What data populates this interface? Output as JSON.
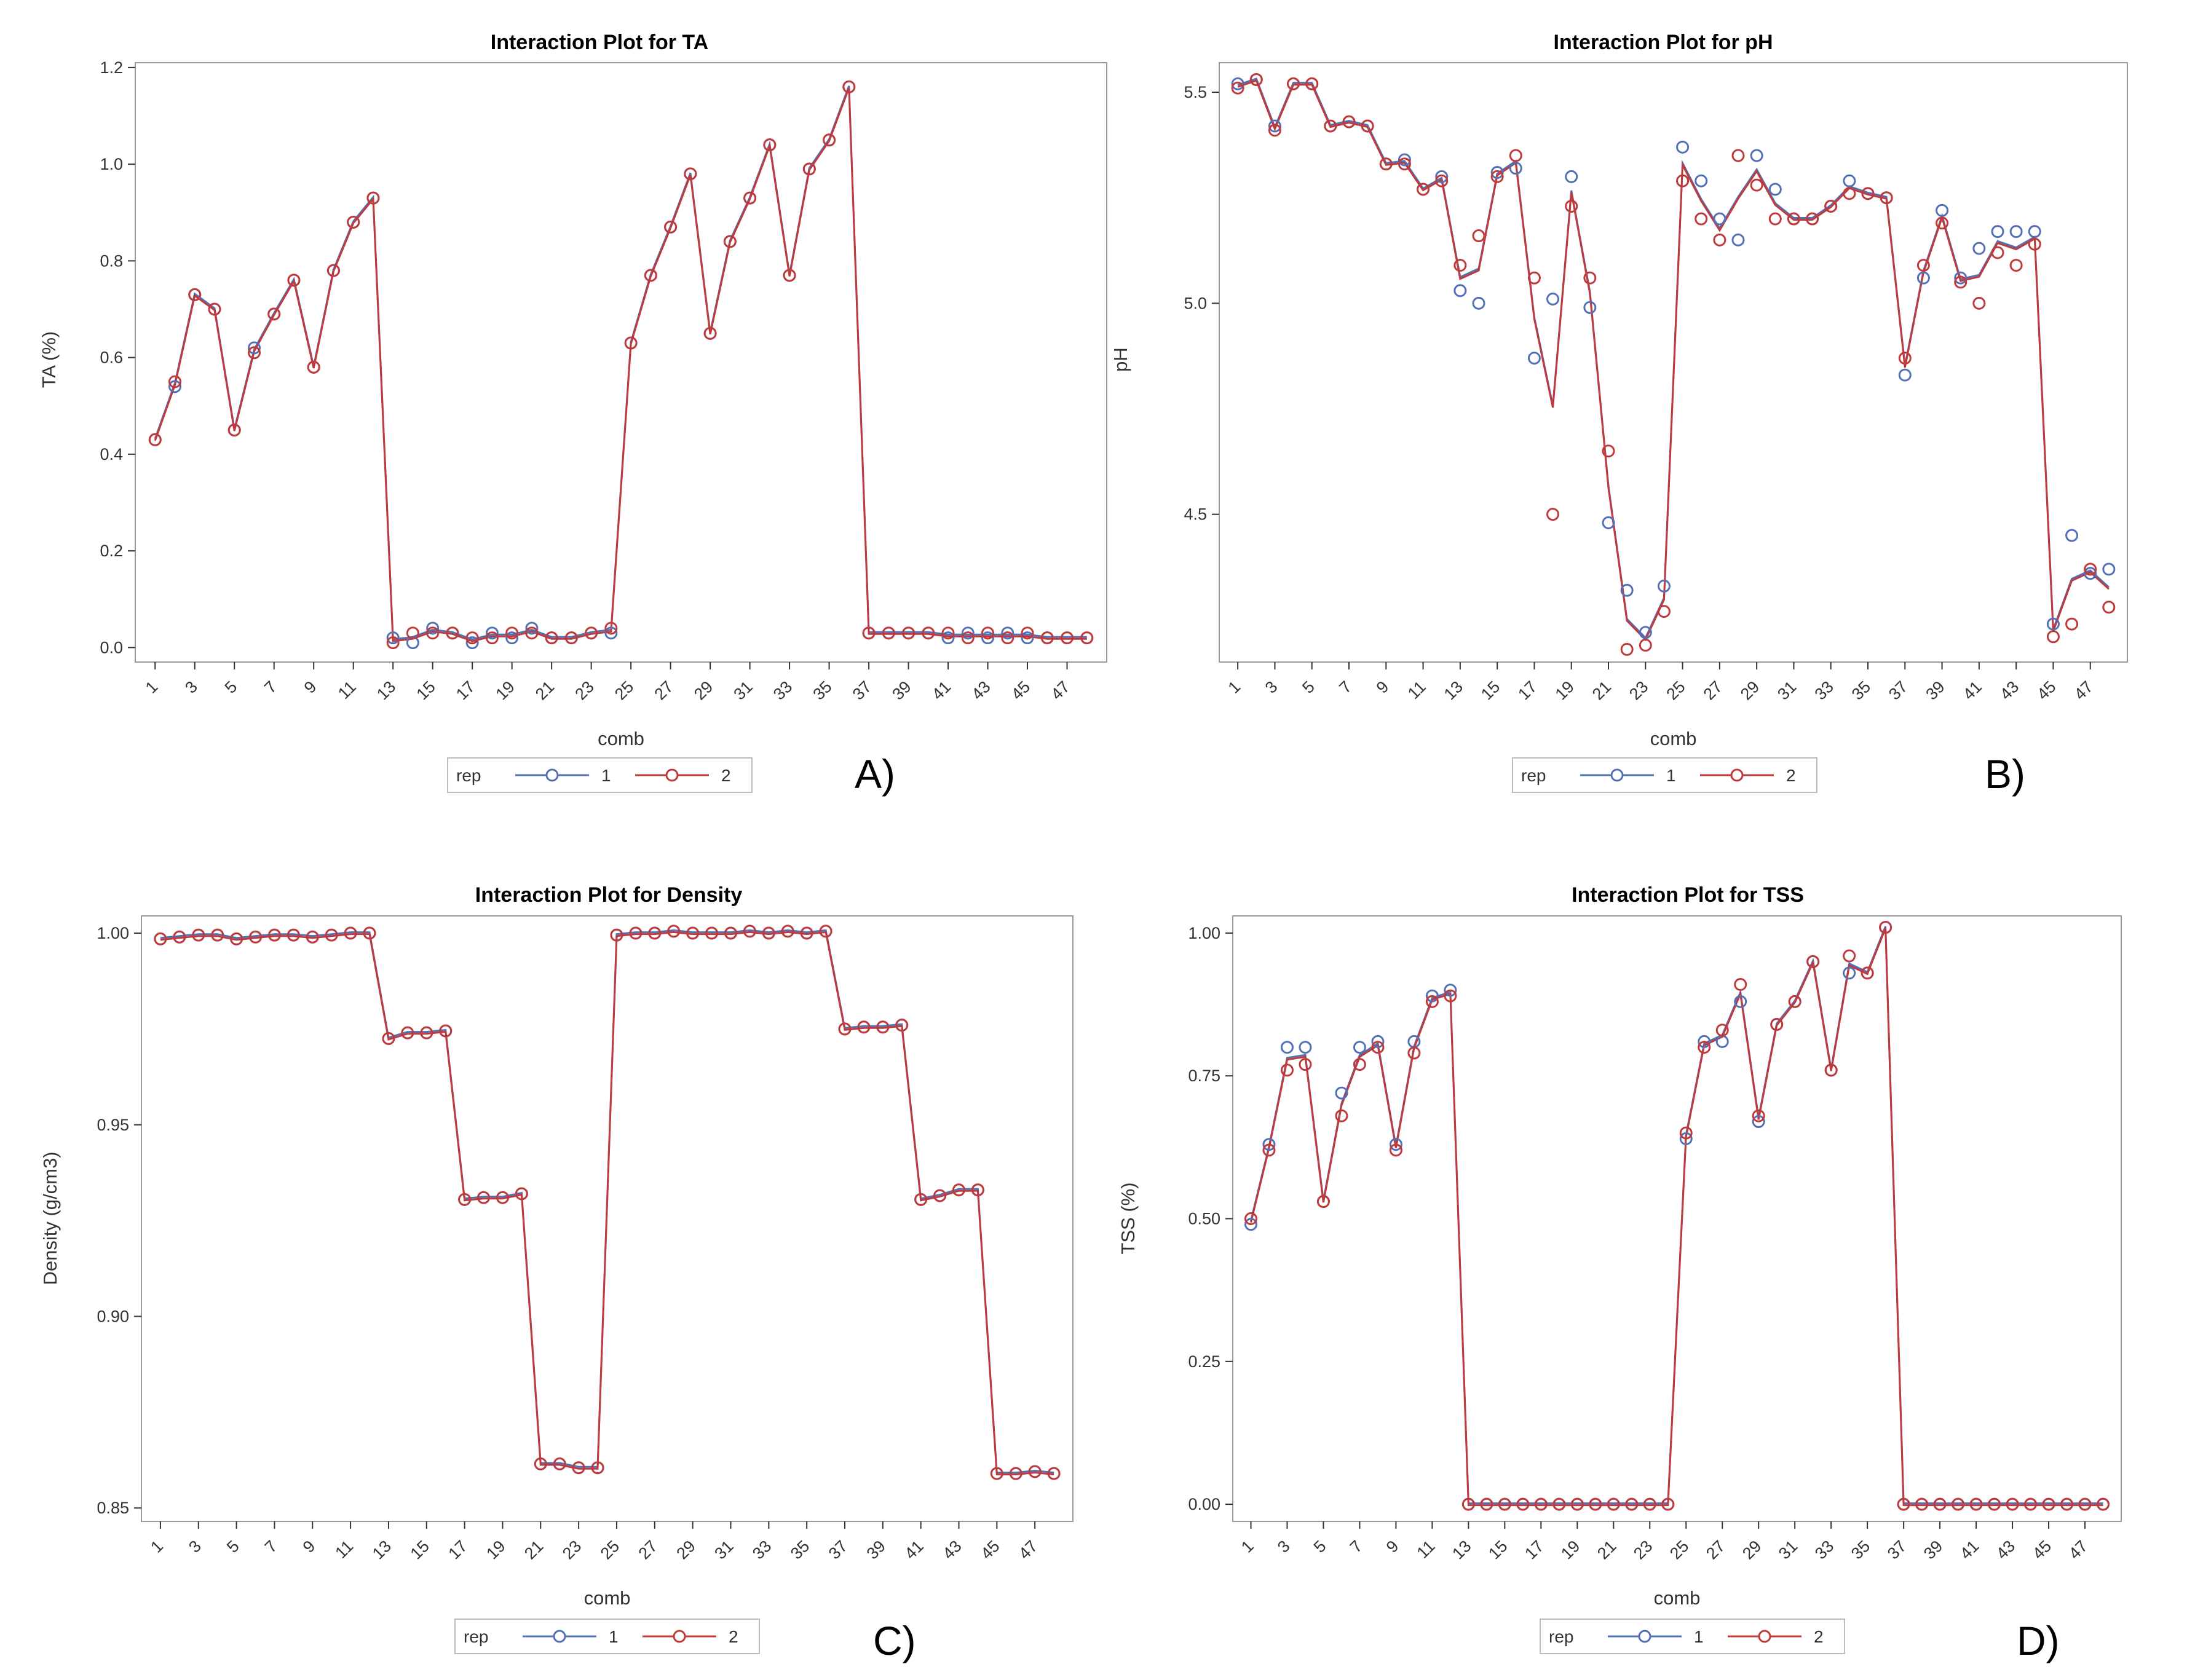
{
  "colors": {
    "rep1": "#5470b5",
    "rep2": "#c0393b",
    "frame": "#999999",
    "tickcolor": "#333333"
  },
  "legend": {
    "title": "rep",
    "items": [
      "1",
      "2"
    ]
  },
  "chart_data": [
    {
      "id": "A",
      "type": "line",
      "panel_label": "A)",
      "title": "Interaction Plot for TA",
      "xlabel": "comb",
      "ylabel": "TA (%)",
      "ylim": [
        -0.03,
        1.21
      ],
      "yticks": [
        0.0,
        0.2,
        0.4,
        0.6,
        0.8,
        1.0,
        1.2
      ],
      "ytick_labels": [
        "0.0",
        "0.2",
        "0.4",
        "0.6",
        "0.8",
        "1.0",
        "1.2"
      ],
      "xticks": [
        1,
        3,
        5,
        7,
        9,
        11,
        13,
        15,
        17,
        19,
        21,
        23,
        25,
        27,
        29,
        31,
        33,
        35,
        37,
        39,
        41,
        43,
        45,
        47
      ],
      "xlim": [
        0,
        49
      ],
      "series": [
        {
          "name": "1",
          "values": [
            0.43,
            0.54,
            0.73,
            0.7,
            0.45,
            0.62,
            0.69,
            0.76,
            0.58,
            0.78,
            0.88,
            0.93,
            0.02,
            0.01,
            0.04,
            0.03,
            0.01,
            0.03,
            0.02,
            0.04,
            0.02,
            0.02,
            0.03,
            0.03,
            0.63,
            0.77,
            0.87,
            0.98,
            0.65,
            0.84,
            0.93,
            1.04,
            0.77,
            0.99,
            1.05,
            1.16,
            0.03,
            0.03,
            0.03,
            0.03,
            0.02,
            0.03,
            0.02,
            0.03,
            0.02,
            0.02,
            0.02,
            0.02
          ]
        },
        {
          "name": "2",
          "values": [
            0.43,
            0.55,
            0.73,
            0.7,
            0.45,
            0.61,
            0.69,
            0.76,
            0.58,
            0.78,
            0.88,
            0.93,
            0.01,
            0.03,
            0.03,
            0.03,
            0.02,
            0.02,
            0.03,
            0.03,
            0.02,
            0.02,
            0.03,
            0.04,
            0.63,
            0.77,
            0.87,
            0.98,
            0.65,
            0.84,
            0.93,
            1.04,
            0.77,
            0.99,
            1.05,
            1.16,
            0.03,
            0.03,
            0.03,
            0.03,
            0.03,
            0.02,
            0.03,
            0.02,
            0.03,
            0.02,
            0.02,
            0.02
          ]
        }
      ]
    },
    {
      "id": "B",
      "type": "line",
      "panel_label": "B)",
      "title": "Interaction Plot for pH",
      "xlabel": "comb",
      "ylabel": "pH",
      "ylim": [
        4.15,
        5.57
      ],
      "yticks": [
        4.5,
        5.0,
        5.5
      ],
      "ytick_labels": [
        "4.5",
        "5.0",
        "5.5"
      ],
      "xticks": [
        1,
        3,
        5,
        7,
        9,
        11,
        13,
        15,
        17,
        19,
        21,
        23,
        25,
        27,
        29,
        31,
        33,
        35,
        37,
        39,
        41,
        43,
        45,
        47
      ],
      "xlim": [
        0,
        49
      ],
      "series": [
        {
          "name": "1",
          "values": [
            5.52,
            5.53,
            5.42,
            5.52,
            5.52,
            5.42,
            5.43,
            5.42,
            5.33,
            5.34,
            5.27,
            5.3,
            5.03,
            5.0,
            5.31,
            5.32,
            4.87,
            5.01,
            5.3,
            4.99,
            4.48,
            4.32,
            4.22,
            4.33,
            5.37,
            5.29,
            5.2,
            5.15,
            5.35,
            5.27,
            5.2,
            5.2,
            5.23,
            5.29,
            5.26,
            5.25,
            4.83,
            5.06,
            5.22,
            5.06,
            5.13,
            5.17,
            5.17,
            5.17,
            4.24,
            4.45,
            4.36,
            4.37
          ]
        },
        {
          "name": "2",
          "values": [
            5.51,
            5.53,
            5.41,
            5.52,
            5.52,
            5.42,
            5.43,
            5.42,
            5.33,
            5.33,
            5.27,
            5.29,
            5.09,
            5.16,
            5.3,
            5.35,
            5.06,
            4.5,
            5.23,
            5.06,
            4.65,
            4.18,
            4.19,
            4.27,
            5.29,
            5.2,
            5.15,
            5.35,
            5.28,
            5.2,
            5.2,
            5.2,
            5.23,
            5.26,
            5.26,
            5.25,
            4.87,
            5.09,
            5.19,
            5.05,
            5.0,
            5.12,
            5.09,
            5.14,
            4.21,
            4.24,
            4.37,
            4.28
          ]
        }
      ]
    },
    {
      "id": "C",
      "type": "line",
      "panel_label": "C)",
      "title": "Interaction Plot for Density",
      "xlabel": "comb",
      "ylabel": "Density  (g/cm3)",
      "ylim": [
        0.8465,
        1.0045
      ],
      "yticks": [
        0.85,
        0.9,
        0.95,
        1.0
      ],
      "ytick_labels": [
        "0.85",
        "0.90",
        "0.95",
        "1.00"
      ],
      "xticks": [
        1,
        3,
        5,
        7,
        9,
        11,
        13,
        15,
        17,
        19,
        21,
        23,
        25,
        27,
        29,
        31,
        33,
        35,
        37,
        39,
        41,
        43,
        45,
        47
      ],
      "xlim": [
        0,
        49
      ],
      "series": [
        {
          "name": "1",
          "values": [
            0.9985,
            0.999,
            0.9995,
            0.9995,
            0.9985,
            0.999,
            0.9995,
            0.9995,
            0.999,
            0.9995,
            1.0,
            1.0,
            0.9725,
            0.974,
            0.974,
            0.9745,
            0.9305,
            0.931,
            0.931,
            0.932,
            0.8615,
            0.8615,
            0.8605,
            0.8605,
            0.9995,
            1.0,
            1.0,
            1.0005,
            1.0,
            1.0,
            1.0,
            1.0005,
            1.0,
            1.0005,
            1.0,
            1.0005,
            0.975,
            0.9755,
            0.9755,
            0.976,
            0.9305,
            0.9315,
            0.933,
            0.933,
            0.859,
            0.859,
            0.8595,
            0.859
          ]
        },
        {
          "name": "2",
          "values": [
            0.9985,
            0.999,
            0.9995,
            0.9995,
            0.9985,
            0.999,
            0.9995,
            0.9995,
            0.999,
            0.9995,
            1.0,
            1.0,
            0.9725,
            0.974,
            0.974,
            0.9745,
            0.9305,
            0.931,
            0.931,
            0.932,
            0.8615,
            0.8615,
            0.8605,
            0.8605,
            0.9995,
            1.0,
            1.0,
            1.0005,
            1.0,
            1.0,
            1.0,
            1.0005,
            1.0,
            1.0005,
            1.0,
            1.0005,
            0.975,
            0.9755,
            0.9755,
            0.976,
            0.9305,
            0.9315,
            0.933,
            0.933,
            0.859,
            0.859,
            0.8595,
            0.859
          ]
        }
      ]
    },
    {
      "id": "D",
      "type": "line",
      "panel_label": "D)",
      "title": "Interaction Plot for TSS",
      "xlabel": "comb",
      "ylabel": "TSS  (%)",
      "ylim": [
        -0.03,
        1.03
      ],
      "yticks": [
        0.0,
        0.25,
        0.5,
        0.75,
        1.0
      ],
      "ytick_labels": [
        "0.00",
        "0.25",
        "0.50",
        "0.75",
        "1.00"
      ],
      "xticks": [
        1,
        3,
        5,
        7,
        9,
        11,
        13,
        15,
        17,
        19,
        21,
        23,
        25,
        27,
        29,
        31,
        33,
        35,
        37,
        39,
        41,
        43,
        45,
        47
      ],
      "xlim": [
        0,
        49
      ],
      "series": [
        {
          "name": "1",
          "values": [
            0.49,
            0.63,
            0.8,
            0.8,
            0.53,
            0.72,
            0.8,
            0.81,
            0.63,
            0.81,
            0.89,
            0.9,
            0,
            0,
            0,
            0,
            0,
            0,
            0,
            0,
            0,
            0,
            0,
            0,
            0.64,
            0.81,
            0.81,
            0.88,
            0.67,
            0.84,
            0.88,
            0.95,
            0.76,
            0.93,
            0.93,
            1.01,
            0,
            0,
            0,
            0,
            0,
            0,
            0,
            0,
            0,
            0,
            0,
            0
          ]
        },
        {
          "name": "2",
          "values": [
            0.5,
            0.62,
            0.76,
            0.77,
            0.53,
            0.68,
            0.77,
            0.8,
            0.62,
            0.79,
            0.88,
            0.89,
            0,
            0,
            0,
            0,
            0,
            0,
            0,
            0,
            0,
            0,
            0,
            0,
            0.65,
            0.8,
            0.83,
            0.91,
            0.68,
            0.84,
            0.88,
            0.95,
            0.76,
            0.96,
            0.93,
            1.01,
            0,
            0,
            0,
            0,
            0,
            0,
            0,
            0,
            0,
            0,
            0,
            0
          ]
        }
      ]
    }
  ]
}
